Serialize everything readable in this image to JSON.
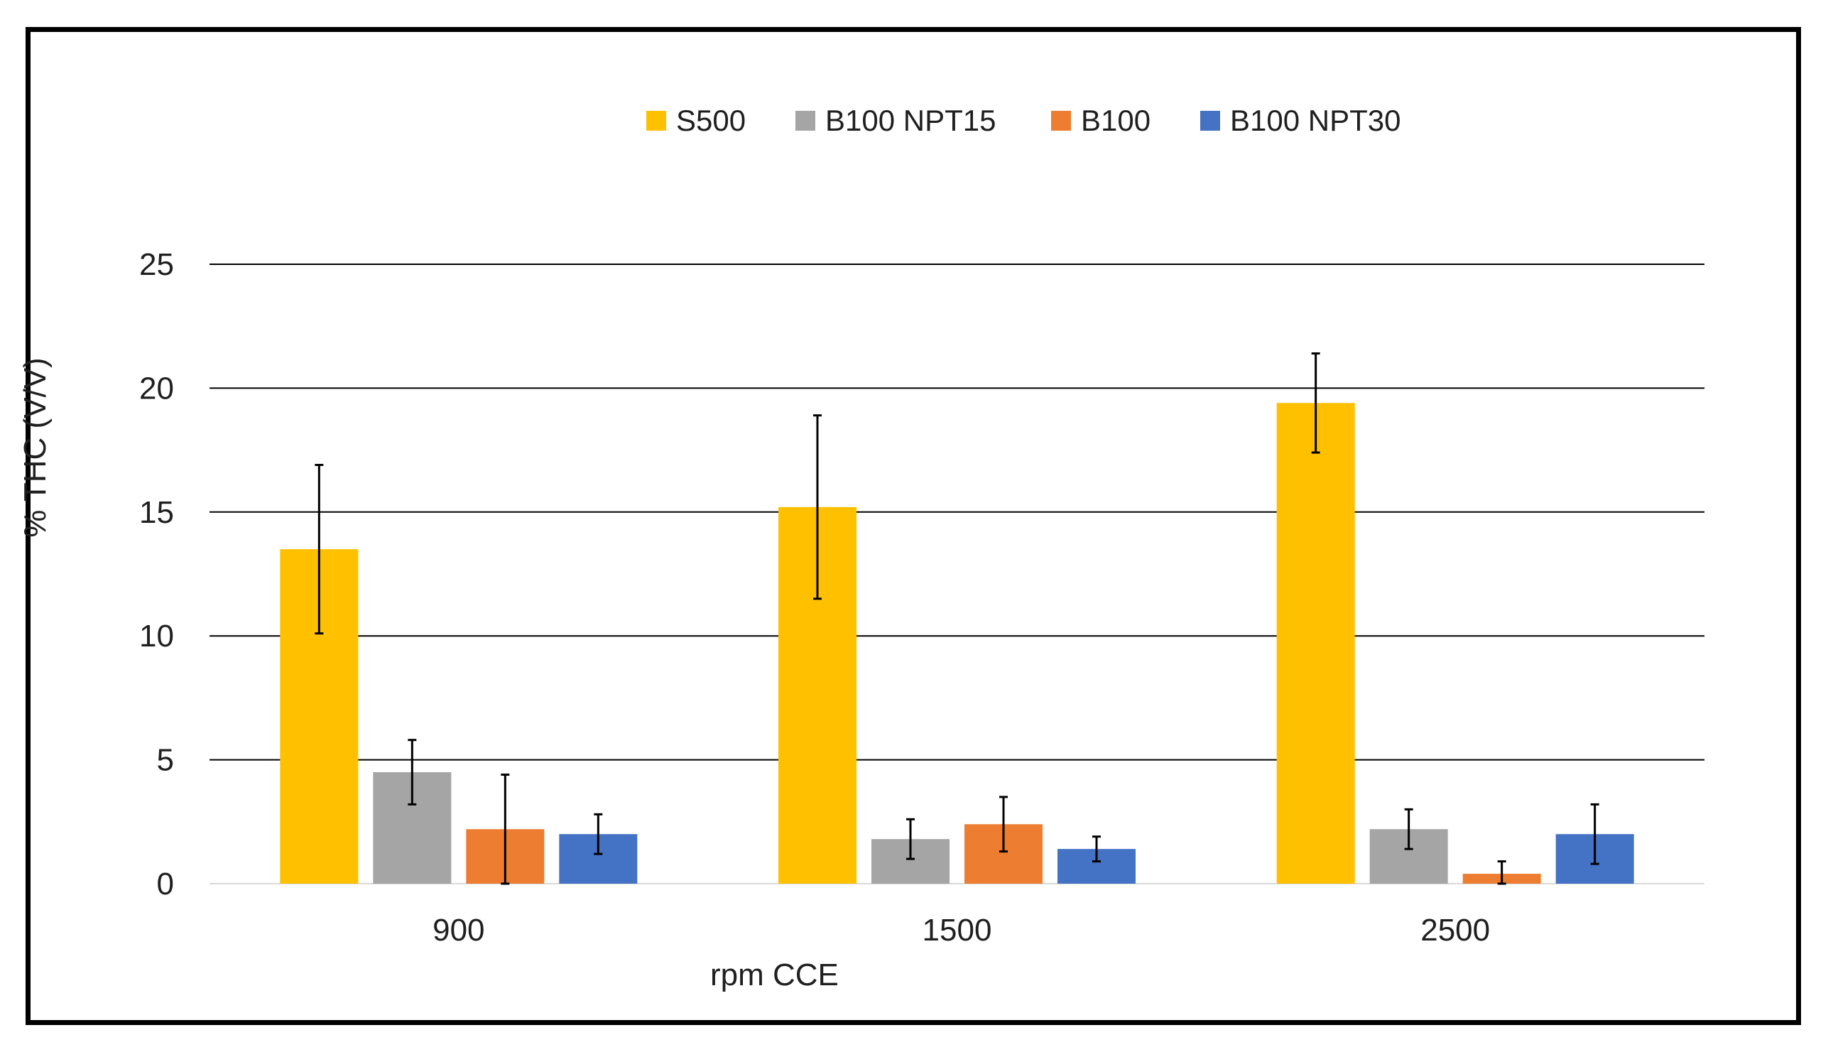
{
  "chart_data": {
    "type": "bar",
    "categories": [
      "900",
      "1500",
      "2500"
    ],
    "series": [
      {
        "name": "S500",
        "color": "#FFC000",
        "values": [
          13.5,
          15.2,
          19.4
        ],
        "error": [
          3.4,
          3.7,
          2.0
        ]
      },
      {
        "name": "B100 NPT15",
        "color": "#A5A5A5",
        "values": [
          4.5,
          1.8,
          2.2
        ],
        "error": [
          1.3,
          0.8,
          0.8
        ]
      },
      {
        "name": "B100",
        "color": "#ED7D31",
        "values": [
          2.2,
          2.4,
          0.4
        ],
        "error": [
          2.2,
          1.1,
          0.5
        ]
      },
      {
        "name": "B100 NPT30",
        "color": "#4472C4",
        "values": [
          2.0,
          1.4,
          2.0
        ],
        "error": [
          0.8,
          0.5,
          1.2
        ]
      }
    ],
    "title": "",
    "xlabel": "rpm CCE",
    "ylabel": "% THC (V/V)",
    "ylim": [
      0,
      25
    ],
    "yticks": [
      "0",
      "5",
      "10",
      "15",
      "20",
      "25"
    ],
    "grid": true,
    "legend_position": "top"
  }
}
